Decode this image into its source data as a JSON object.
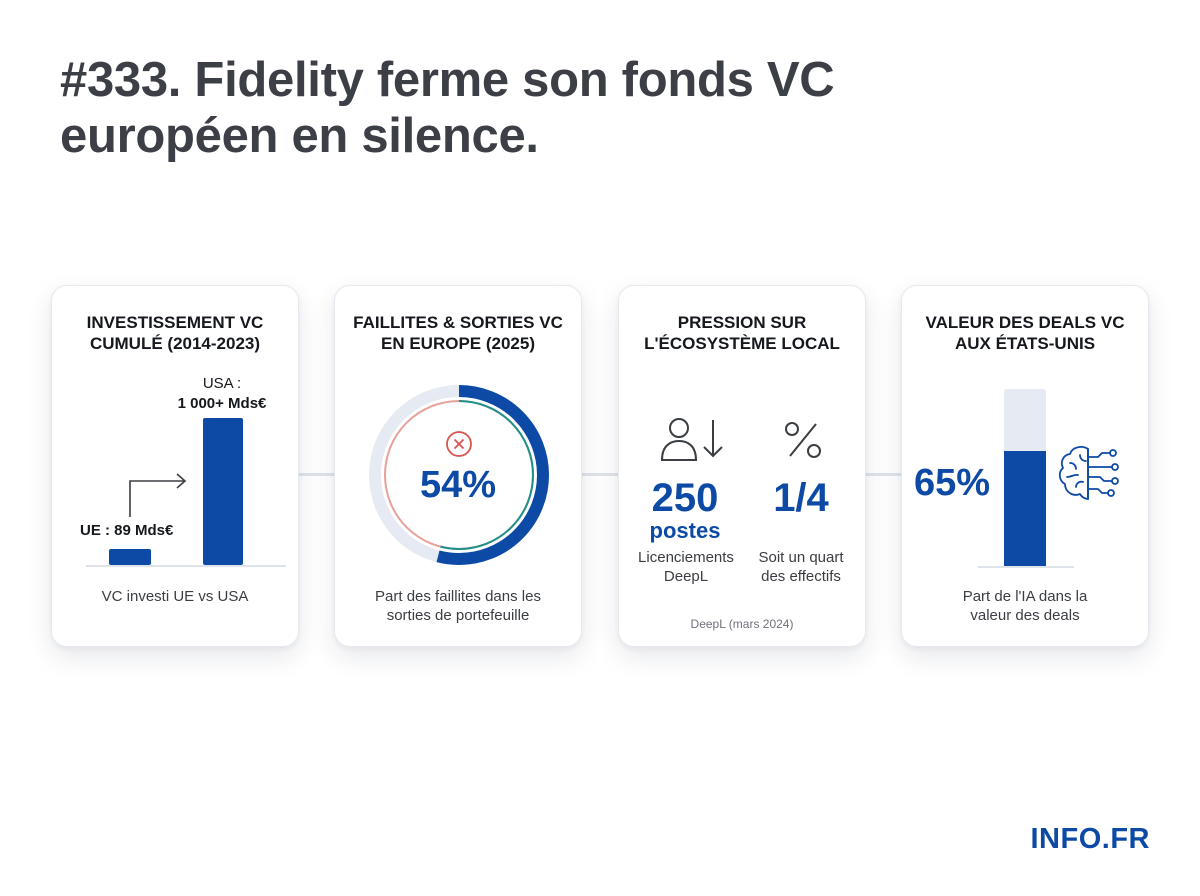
{
  "title": "#333. Fidelity ferme son fonds VC européen en silence.",
  "brand": "INFO.FR",
  "colors": {
    "accent": "#0d4aa6",
    "track": "#e6eaf2",
    "danger": "#d9534f",
    "teal": "#1f8f8a"
  },
  "cards": [
    {
      "title": "INVESTISSEMENT VC CUMULÉ (2014-2023)",
      "label_eu": "UE : 89 Mds€",
      "label_usa_line1": "USA :",
      "label_usa_line2": "1 000+ Mds€",
      "caption": "VC investi UE vs USA",
      "chart_data": {
        "type": "bar",
        "categories": [
          "UE",
          "USA"
        ],
        "values": [
          89,
          1000
        ],
        "unit": "Mds€"
      }
    },
    {
      "title": "FAILLITES & SORTIES VC EN EUROPE (2025)",
      "value_label": "54%",
      "value": 54,
      "icon": "x-circle-icon",
      "caption": "Part des faillites dans les\nsorties de portefeuille"
    },
    {
      "title": "PRESSION SUR L'ÉCOSYSTÈME LOCAL",
      "stat1_value": "250",
      "stat1_unit": "postes",
      "stat1_caption": "Licenciements\nDeepL",
      "stat1_icon": "person-down-arrow-icon",
      "stat2_value": "1/4",
      "stat2_caption": "Soit un quart\ndes effectifs",
      "stat2_icon": "percent-icon",
      "source": "DeepL (mars 2024)"
    },
    {
      "title": "VALEUR DES DEALS VC AUX ÉTATS-UNIS",
      "value_label": "65%",
      "value": 65,
      "icon": "ai-brain-icon",
      "caption": "Part de l'IA dans la\nvaleur des deals"
    }
  ]
}
